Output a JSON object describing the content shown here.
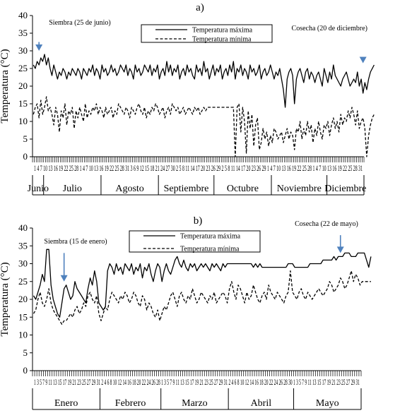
{
  "chart_data": [
    {
      "type": "line",
      "panel_label": "a)",
      "ylabel": "Temperatura (°C)",
      "ylim": [
        0,
        40
      ],
      "yticks": [
        0,
        5,
        10,
        15,
        20,
        25,
        30,
        35,
        40
      ],
      "months": [
        "Junio",
        "Julio",
        "Agosto",
        "Septiembre",
        "Octubre",
        "Noviembre",
        "Diciembre"
      ],
      "month_days": [
        6,
        31,
        31,
        30,
        31,
        30,
        20
      ],
      "tick_labels": "1 4 7 10 13 16 19 22 25 28 1 4 7 10 13 16 19 22 25 28 31 3 6 9 12 15 18 21 24 27 30 2 5 8 11 14 17 20 23 26 29 2 5 8 11 14 17 20 23 26 29 1 4 7 10 13 16 19 22 25 28 1 4 7 10 13 16 19 22 25 28 31",
      "annotations": [
        {
          "text": "Siembra (25 de junio)",
          "at_day": 3,
          "arrow_top": 32.5,
          "arrow_bottom": 30
        },
        {
          "text": "Cosecha (20 de diciembre)",
          "at_day": 178,
          "arrow_top": 27.5,
          "arrow_bottom": 26.5
        }
      ],
      "legend_position": "top-center",
      "series": [
        {
          "name": "Temperatura máxima",
          "style": "solid",
          "values": [
            26,
            25,
            27,
            26,
            28,
            27,
            29,
            26,
            28,
            25,
            23,
            26,
            24,
            22,
            24,
            23,
            25,
            24,
            22,
            24,
            23,
            25,
            24,
            23,
            25,
            24,
            22,
            25,
            24,
            23,
            25,
            24,
            26,
            23,
            25,
            24,
            22,
            26,
            24,
            25,
            23,
            24,
            26,
            24,
            25,
            23,
            24,
            26,
            25,
            24,
            26,
            23,
            25,
            24,
            22,
            26,
            24,
            25,
            23,
            24,
            26,
            25,
            24,
            26,
            23,
            25,
            24,
            26,
            22,
            24,
            25,
            23,
            27,
            24,
            26,
            23,
            25,
            24,
            26,
            22,
            24,
            25,
            23,
            26,
            24,
            25,
            23,
            22,
            26,
            24,
            25,
            23,
            27,
            24,
            25,
            22,
            24,
            26,
            23,
            25,
            24,
            26,
            22,
            24,
            25,
            23,
            26,
            24,
            27,
            22,
            25,
            24,
            26,
            23,
            25,
            24,
            22,
            26,
            24,
            25,
            23,
            24,
            26,
            22,
            24,
            25,
            23,
            24,
            26,
            24,
            22,
            24,
            23,
            25,
            22,
            19,
            14,
            22,
            24,
            25,
            23,
            15,
            22,
            24,
            25,
            23,
            21,
            24,
            25,
            22,
            24,
            23,
            21,
            23,
            24,
            22,
            20,
            25,
            23,
            21,
            24,
            22,
            26,
            23,
            22,
            21,
            20,
            22,
            23,
            24,
            22,
            20,
            21,
            22,
            21,
            24,
            20,
            22,
            18,
            21,
            19,
            22,
            24,
            25,
            26
          ]
        },
        {
          "name": "Temperatura mínima",
          "style": "dashed",
          "values": [
            12,
            14,
            15,
            11,
            16,
            12,
            14,
            17,
            13,
            14,
            12,
            9,
            14,
            12,
            7,
            13,
            11,
            15,
            9,
            13,
            12,
            14,
            8,
            13,
            11,
            14,
            12,
            10,
            15,
            11,
            13,
            12,
            14,
            13,
            15,
            12,
            14,
            13,
            11,
            14,
            12,
            13,
            14,
            11,
            13,
            12,
            15,
            14,
            13,
            12,
            14,
            13,
            11,
            14,
            13,
            12,
            14,
            15,
            13,
            12,
            14,
            11,
            13,
            12,
            14,
            13,
            15,
            14,
            12,
            13,
            14,
            11,
            13,
            14,
            12,
            15,
            14,
            13,
            14,
            12,
            13,
            14,
            12,
            13,
            14,
            13,
            12,
            14,
            13,
            14,
            12,
            13,
            14,
            13,
            14,
            14,
            14,
            14,
            14,
            14,
            14,
            14,
            14,
            14,
            14,
            14,
            14,
            14,
            14,
            0,
            14,
            15,
            7,
            14,
            10,
            1,
            13,
            8,
            12,
            3,
            9,
            11,
            2,
            4,
            8,
            5,
            7,
            3,
            6,
            4,
            8,
            7,
            5,
            6,
            7,
            4,
            6,
            8,
            5,
            7,
            6,
            2,
            8,
            7,
            10,
            5,
            8,
            6,
            10,
            7,
            9,
            4,
            8,
            6,
            10,
            7,
            5,
            9,
            8,
            10,
            6,
            9,
            11,
            8,
            10,
            7,
            12,
            9,
            11,
            10,
            13,
            11,
            14,
            12,
            9,
            13,
            8,
            10,
            11,
            8,
            0,
            6,
            9,
            11,
            12
          ]
        }
      ]
    },
    {
      "type": "line",
      "panel_label": "b)",
      "ylabel": "Temperatura (°C)",
      "ylim": [
        0,
        40
      ],
      "yticks": [
        0,
        5,
        10,
        15,
        20,
        25,
        30,
        35,
        40
      ],
      "months": [
        "Enero",
        "Febrero",
        "Marzo",
        "Abril",
        "Mayo"
      ],
      "month_days": [
        31,
        28,
        31,
        30,
        31
      ],
      "tick_labels": "1 3 5 7 9 11 13 15 17 19 21 23 25 27 29 31 2 4 6 8 10 12 14 16 18 20 22 24 26 28 1 3 5 7 9 11 13 15 17 19 21 23 25 27 29 31 2 4 6 8 10 12 14 16 18 20 22 24 26 28 30 1 3 5 7 9 11 13 15 17 19 21 23 25 27 29 31",
      "annotations": [
        {
          "text": "Siembra (15 de enero)",
          "at_day": 14,
          "arrow_top": 33,
          "arrow_bottom": 25
        },
        {
          "text": "Cosecha (22 de mayo)",
          "at_day": 141,
          "arrow_top": 38,
          "arrow_bottom": 33
        }
      ],
      "legend_position": "top-center",
      "series": [
        {
          "name": "Temperatura máxima",
          "style": "solid",
          "values": [
            21,
            20,
            22,
            24,
            27,
            25,
            34,
            34,
            24,
            20,
            18,
            16,
            15,
            19,
            23,
            24,
            22,
            20,
            21,
            25,
            23,
            22,
            21,
            20,
            19,
            23,
            26,
            24,
            28,
            25,
            19,
            18,
            17,
            18,
            28,
            30,
            29,
            27,
            30,
            28,
            29,
            27,
            30,
            29,
            28,
            30,
            27,
            29,
            28,
            30,
            26,
            29,
            28,
            30,
            27,
            25,
            28,
            30,
            29,
            25,
            28,
            30,
            28,
            27,
            29,
            31,
            32,
            30,
            29,
            31,
            29,
            28,
            30,
            29,
            30,
            28,
            29,
            30,
            29,
            30,
            29,
            28,
            30,
            29,
            30,
            29,
            28,
            30,
            29,
            30,
            30,
            30,
            30,
            30,
            30,
            30,
            30,
            30,
            30,
            30,
            30,
            29,
            30,
            29,
            30,
            29,
            29,
            29,
            29,
            29,
            29,
            29,
            29,
            29,
            29,
            29,
            29,
            30,
            30,
            30,
            29,
            29,
            29,
            29,
            29,
            29,
            29,
            30,
            30,
            30,
            30,
            30,
            30,
            31,
            31,
            31,
            31,
            31,
            32,
            31,
            32,
            32,
            32,
            33,
            33,
            33,
            32,
            32,
            32,
            33,
            33,
            33,
            33,
            31,
            29,
            32
          ]
        },
        {
          "name": "Temperatura mínima",
          "style": "dashed",
          "values": [
            16,
            17,
            20,
            22,
            19,
            18,
            20,
            23,
            19,
            17,
            16,
            15,
            14,
            13,
            14,
            14,
            15,
            16,
            15,
            17,
            18,
            16,
            17,
            19,
            18,
            21,
            22,
            20,
            19,
            21,
            16,
            14,
            16,
            18,
            17,
            20,
            22,
            21,
            20,
            19,
            21,
            20,
            22,
            21,
            19,
            20,
            22,
            21,
            19,
            18,
            21,
            20,
            17,
            19,
            18,
            16,
            15,
            17,
            14,
            16,
            18,
            17,
            19,
            21,
            22,
            20,
            18,
            21,
            22,
            20,
            19,
            21,
            20,
            23,
            21,
            19,
            20,
            22,
            21,
            20,
            19,
            21,
            20,
            22,
            19,
            20,
            21,
            22,
            21,
            19,
            23,
            25,
            22,
            20,
            24,
            23,
            21,
            19,
            22,
            20,
            21,
            24,
            22,
            20,
            19,
            21,
            22,
            20,
            24,
            22,
            21,
            20,
            22,
            21,
            20,
            19,
            21,
            22,
            28,
            22,
            21,
            20,
            22,
            23,
            21,
            20,
            22,
            21,
            20,
            21,
            22,
            23,
            22,
            21,
            22,
            23,
            25,
            24,
            22,
            23,
            24,
            26,
            25,
            23,
            24,
            26,
            28,
            25,
            27,
            26,
            24,
            25,
            25,
            25,
            25,
            25
          ]
        }
      ]
    }
  ]
}
